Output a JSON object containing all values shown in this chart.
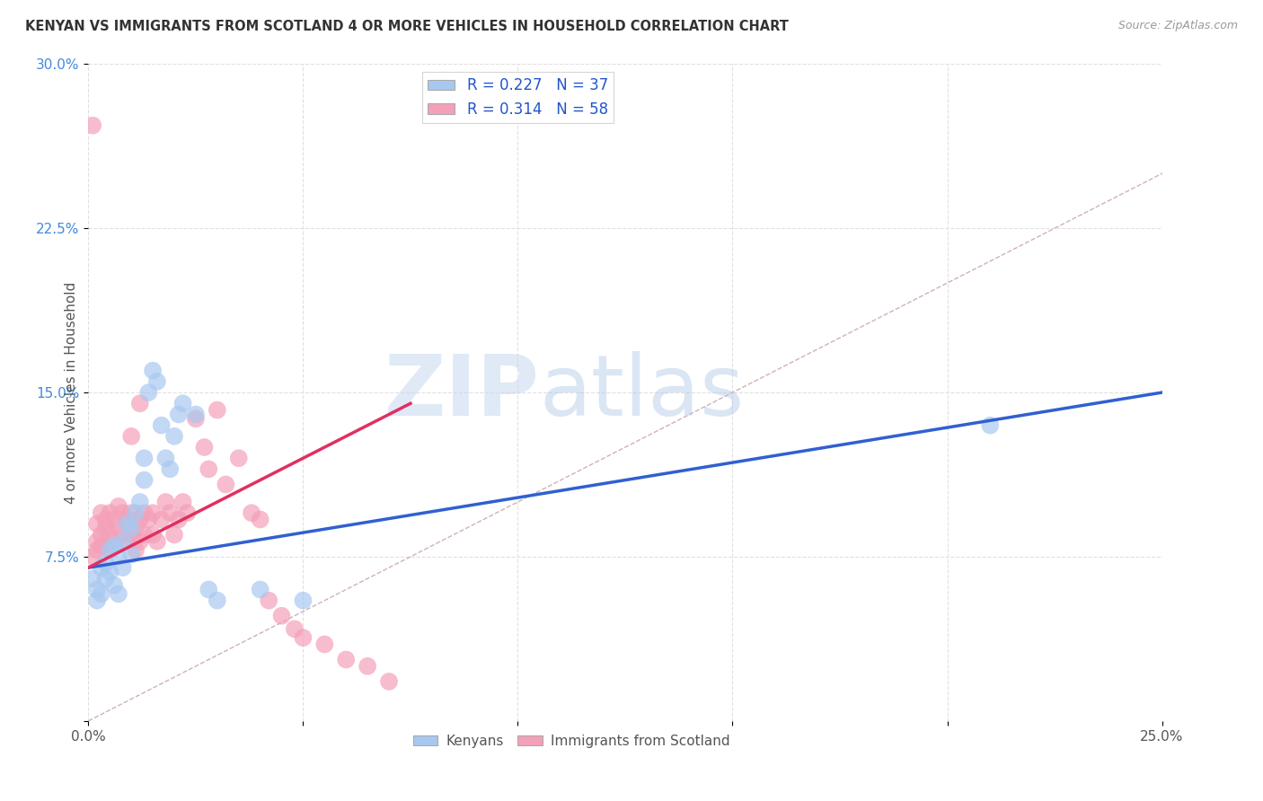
{
  "title": "KENYAN VS IMMIGRANTS FROM SCOTLAND 4 OR MORE VEHICLES IN HOUSEHOLD CORRELATION CHART",
  "source": "Source: ZipAtlas.com",
  "ylabel": "4 or more Vehicles in Household",
  "watermark_zip": "ZIP",
  "watermark_atlas": "atlas",
  "xmin": 0.0,
  "xmax": 0.25,
  "ymin": 0.0,
  "ymax": 0.3,
  "x_ticks": [
    0.0,
    0.05,
    0.1,
    0.15,
    0.2,
    0.25
  ],
  "x_tick_labels": [
    "0.0%",
    "",
    "",
    "",
    "",
    "25.0%"
  ],
  "y_ticks": [
    0.0,
    0.075,
    0.15,
    0.225,
    0.3
  ],
  "y_tick_labels": [
    "",
    "7.5%",
    "15.0%",
    "22.5%",
    "30.0%"
  ],
  "color_kenyan": "#a8c8f0",
  "color_scotland": "#f4a0b8",
  "trendline_kenyan_color": "#3060d0",
  "trendline_scotland_color": "#e03060",
  "diagonal_color": "#d0b0b8",
  "grid_color": "#e0e0e0",
  "kenyan_x": [
    0.001,
    0.002,
    0.002,
    0.003,
    0.003,
    0.004,
    0.004,
    0.005,
    0.005,
    0.006,
    0.006,
    0.007,
    0.007,
    0.008,
    0.008,
    0.009,
    0.01,
    0.01,
    0.011,
    0.012,
    0.013,
    0.013,
    0.014,
    0.015,
    0.016,
    0.017,
    0.018,
    0.019,
    0.02,
    0.021,
    0.022,
    0.025,
    0.028,
    0.03,
    0.04,
    0.05,
    0.21
  ],
  "kenyan_y": [
    0.065,
    0.06,
    0.055,
    0.07,
    0.058,
    0.072,
    0.065,
    0.078,
    0.068,
    0.062,
    0.08,
    0.075,
    0.058,
    0.082,
    0.07,
    0.09,
    0.088,
    0.076,
    0.095,
    0.1,
    0.11,
    0.12,
    0.15,
    0.16,
    0.155,
    0.135,
    0.12,
    0.115,
    0.13,
    0.14,
    0.145,
    0.14,
    0.06,
    0.055,
    0.06,
    0.055,
    0.135
  ],
  "scotland_x": [
    0.001,
    0.001,
    0.002,
    0.002,
    0.002,
    0.003,
    0.003,
    0.003,
    0.004,
    0.004,
    0.005,
    0.005,
    0.005,
    0.006,
    0.006,
    0.007,
    0.007,
    0.008,
    0.008,
    0.009,
    0.009,
    0.01,
    0.01,
    0.011,
    0.011,
    0.012,
    0.012,
    0.013,
    0.013,
    0.014,
    0.015,
    0.015,
    0.016,
    0.017,
    0.018,
    0.019,
    0.02,
    0.021,
    0.022,
    0.023,
    0.025,
    0.027,
    0.028,
    0.03,
    0.032,
    0.035,
    0.038,
    0.04,
    0.042,
    0.045,
    0.048,
    0.05,
    0.055,
    0.06,
    0.065,
    0.07,
    0.01,
    0.012
  ],
  "scotland_y": [
    0.272,
    0.075,
    0.082,
    0.09,
    0.078,
    0.08,
    0.085,
    0.095,
    0.088,
    0.092,
    0.078,
    0.085,
    0.095,
    0.082,
    0.092,
    0.088,
    0.098,
    0.085,
    0.095,
    0.082,
    0.092,
    0.085,
    0.095,
    0.088,
    0.078,
    0.092,
    0.082,
    0.095,
    0.085,
    0.092,
    0.085,
    0.095,
    0.082,
    0.092,
    0.1,
    0.095,
    0.085,
    0.092,
    0.1,
    0.095,
    0.138,
    0.125,
    0.115,
    0.142,
    0.108,
    0.12,
    0.095,
    0.092,
    0.055,
    0.048,
    0.042,
    0.038,
    0.035,
    0.028,
    0.025,
    0.018,
    0.13,
    0.145
  ],
  "kenyan_trendline_x0": 0.0,
  "kenyan_trendline_y0": 0.07,
  "kenyan_trendline_x1": 0.25,
  "kenyan_trendline_y1": 0.15,
  "scotland_trendline_x0": 0.0,
  "scotland_trendline_y0": 0.07,
  "scotland_trendline_x1": 0.075,
  "scotland_trendline_y1": 0.145
}
